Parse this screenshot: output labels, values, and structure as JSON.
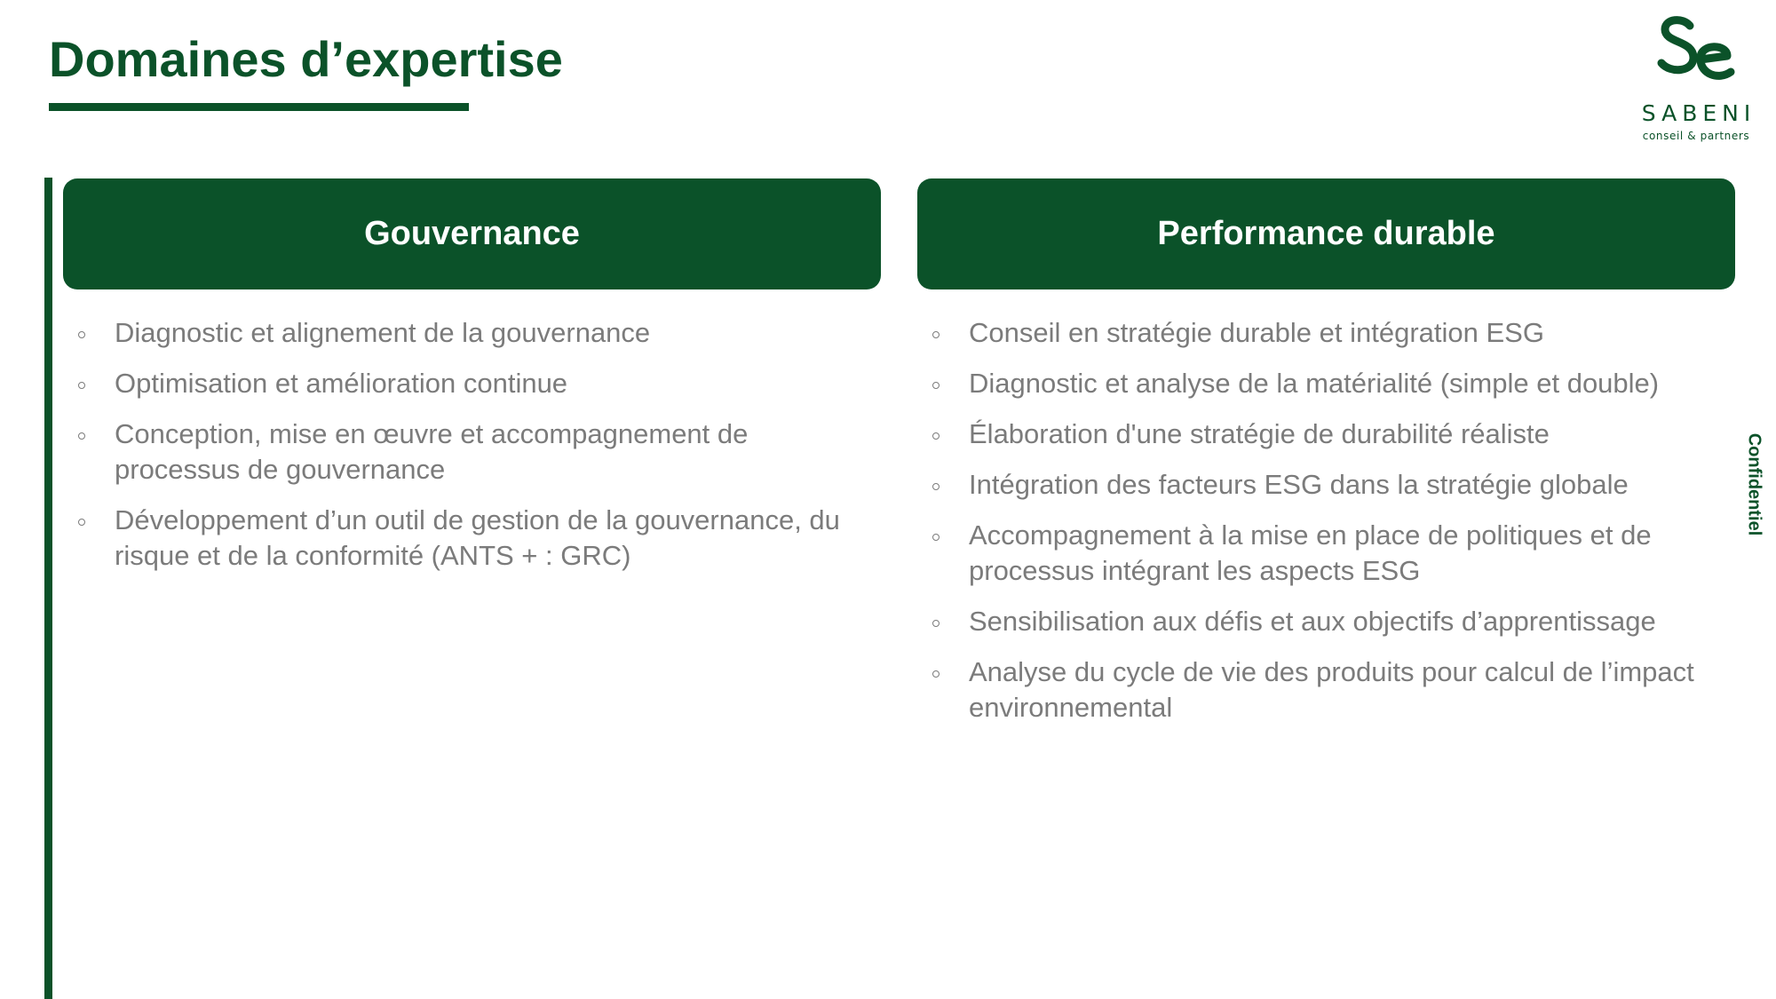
{
  "slide": {
    "title": "Domaines d’expertise",
    "confidential_label": "Confidentiel"
  },
  "logo": {
    "name": "SABENI",
    "tagline": "conseil & partners",
    "icon": "sabeni-se-monogram-icon"
  },
  "colors": {
    "brand_green": "#0b5229",
    "body_text": "#7b7b7b",
    "header_text": "#ffffff"
  },
  "columns": [
    {
      "heading": "Gouvernance",
      "items": [
        "Diagnostic et alignement de la gouvernance",
        "Optimisation et amélioration continue",
        "Conception, mise en œuvre et accompagnement de processus de gouvernance",
        "Développement d’un outil de gestion de la gouvernance, du risque et de la conformité (ANTS + : GRC)"
      ]
    },
    {
      "heading": "Performance durable",
      "items": [
        "Conseil en stratégie durable et intégration ESG",
        "Diagnostic et analyse de la matérialité (simple et double)",
        "Élaboration d'une stratégie de durabilité réaliste",
        "Intégration des facteurs ESG dans la stratégie globale",
        "Accompagnement à la mise en place de politiques et de processus intégrant les aspects ESG",
        "Sensibilisation aux défis et aux objectifs d’apprentissage",
        "Analyse du cycle de vie des produits pour calcul de l’impact environnemental"
      ]
    }
  ]
}
